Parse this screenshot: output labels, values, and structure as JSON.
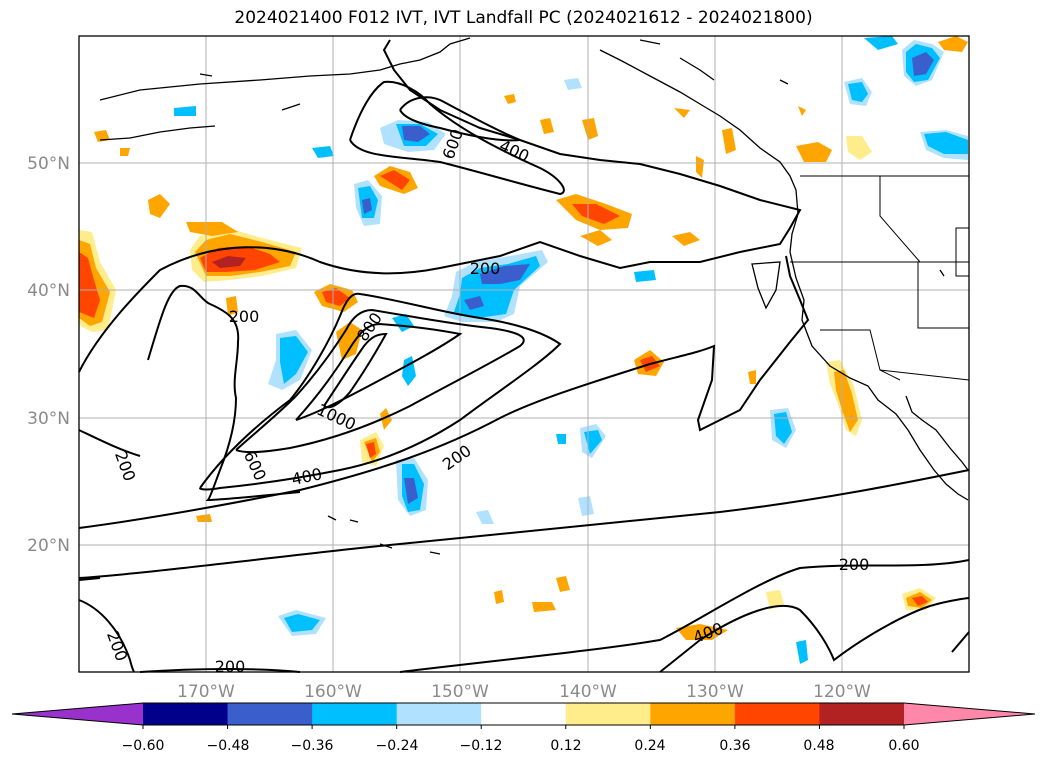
{
  "title": "2024021400 F012 IVT, IVT Landfall PC (2024021612 - 2024021800)",
  "map": {
    "projection": "Equirectangular",
    "lon_range": [
      -180,
      -110
    ],
    "lat_range": [
      10,
      60
    ],
    "lon_ticks": [
      "170°W",
      "160°W",
      "150°W",
      "140°W",
      "130°W",
      "120°W"
    ],
    "lat_ticks": [
      "20°N",
      "30°N",
      "40°N",
      "50°N"
    ],
    "gridlines": true,
    "contour_labels": [
      "200",
      "200",
      "200",
      "200",
      "200",
      "200",
      "200",
      "400",
      "400",
      "400",
      "600",
      "600",
      "800",
      "1000"
    ]
  },
  "colorbar": {
    "extend": "both",
    "tick_labels": [
      "−0.60",
      "−0.48",
      "−0.36",
      "−0.24",
      "−0.12",
      "0.12",
      "0.24",
      "0.36",
      "0.48",
      "0.60"
    ],
    "colors": [
      "#9932cc",
      "#00008b",
      "#3a5fcd",
      "#00bfff",
      "#b0e2ff",
      "#ffffff",
      "#ffec8b",
      "#ffa500",
      "#ff4500",
      "#b22222",
      "#ff88aa"
    ]
  },
  "colors": {
    "coast": "#000000",
    "contour": "#000000",
    "grid": "#b0b0b0"
  }
}
